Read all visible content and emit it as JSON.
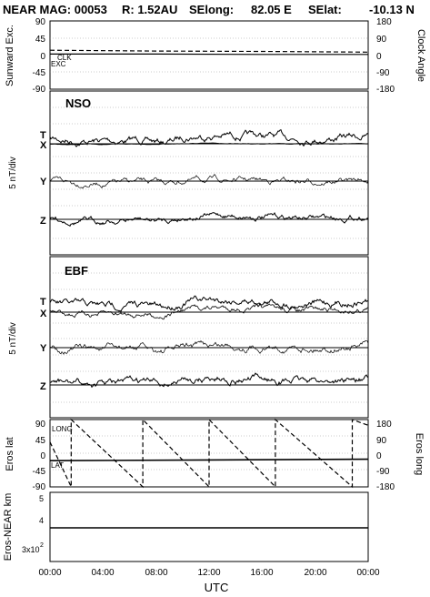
{
  "header": {
    "title": "NEAR MAG: 00053",
    "r": "R: 1.52AU",
    "selong_label": "SElong:",
    "selong_value": "82.05 E",
    "selat_label": "SElat:",
    "selat_value": "-10.13 N"
  },
  "chart_data": [
    {
      "panel": "sunward-clock",
      "type": "line",
      "ylabel_left": "Sunward Exc.",
      "ylabel_right": "Clock Angle",
      "left_ticks": [
        "90",
        "45",
        "0",
        "-45",
        "-90"
      ],
      "right_ticks": [
        "180",
        "90",
        "0",
        "-90",
        "-180"
      ],
      "ylim": [
        -90,
        90
      ],
      "series": [
        {
          "name": "CLK",
          "style": "dashed",
          "points": [
            [
              0,
              14
            ],
            [
              8,
              12
            ],
            [
              16,
              11
            ],
            [
              24,
              9
            ]
          ]
        },
        {
          "name": "EXC",
          "style": "solid",
          "points": [
            [
              0,
              4
            ],
            [
              8,
              4
            ],
            [
              16,
              3
            ],
            [
              24,
              3
            ]
          ]
        }
      ]
    },
    {
      "panel": "nso",
      "type": "line",
      "title": "NSO",
      "ylabel": "5 nT/div",
      "traces": [
        "T",
        "X",
        "Y",
        "Z"
      ]
    },
    {
      "panel": "ebf",
      "type": "line",
      "title": "EBF",
      "ylabel": "5 nT/div",
      "traces": [
        "T",
        "X",
        "Y",
        "Z"
      ]
    },
    {
      "panel": "eros-lat-long",
      "type": "line",
      "ylabel_left": "Eros lat",
      "ylabel_right": "Eros long",
      "left_ticks": [
        "90",
        "45",
        "0",
        "-45",
        "-90"
      ],
      "right_ticks": [
        "180",
        "90",
        "0",
        "-90",
        "-180"
      ],
      "ylim": [
        -90,
        90
      ],
      "series": [
        {
          "name": "LONG",
          "style": "dashed",
          "points": [
            [
              0,
              60
            ],
            [
              1.6,
              -180
            ],
            [
              1.6,
              180
            ],
            [
              7,
              -180
            ],
            [
              7,
              180
            ],
            [
              12,
              -180
            ],
            [
              12,
              180
            ],
            [
              17,
              -180
            ],
            [
              17,
              180
            ],
            [
              22.8,
              -180
            ],
            [
              22.8,
              180
            ],
            [
              24,
              150
            ]
          ]
        },
        {
          "name": "LAT",
          "style": "solid",
          "points": [
            [
              0,
              -20
            ],
            [
              12,
              -18
            ],
            [
              24,
              -16
            ]
          ]
        }
      ]
    },
    {
      "panel": "eros-near-km",
      "type": "line",
      "ylabel": "Eros-NEAR km",
      "tick_top": "5",
      "tick_mid": "4",
      "tick_low": "3x10",
      "tick_low_exp": "2",
      "series": [
        {
          "name": "",
          "points": [
            [
              0,
              350
            ],
            [
              24,
              350
            ]
          ]
        }
      ]
    }
  ],
  "x_axis": {
    "ticks": [
      "00:00",
      "04:00",
      "08:00",
      "12:00",
      "16:00",
      "20:00",
      "00:00"
    ],
    "label": "UTC"
  }
}
